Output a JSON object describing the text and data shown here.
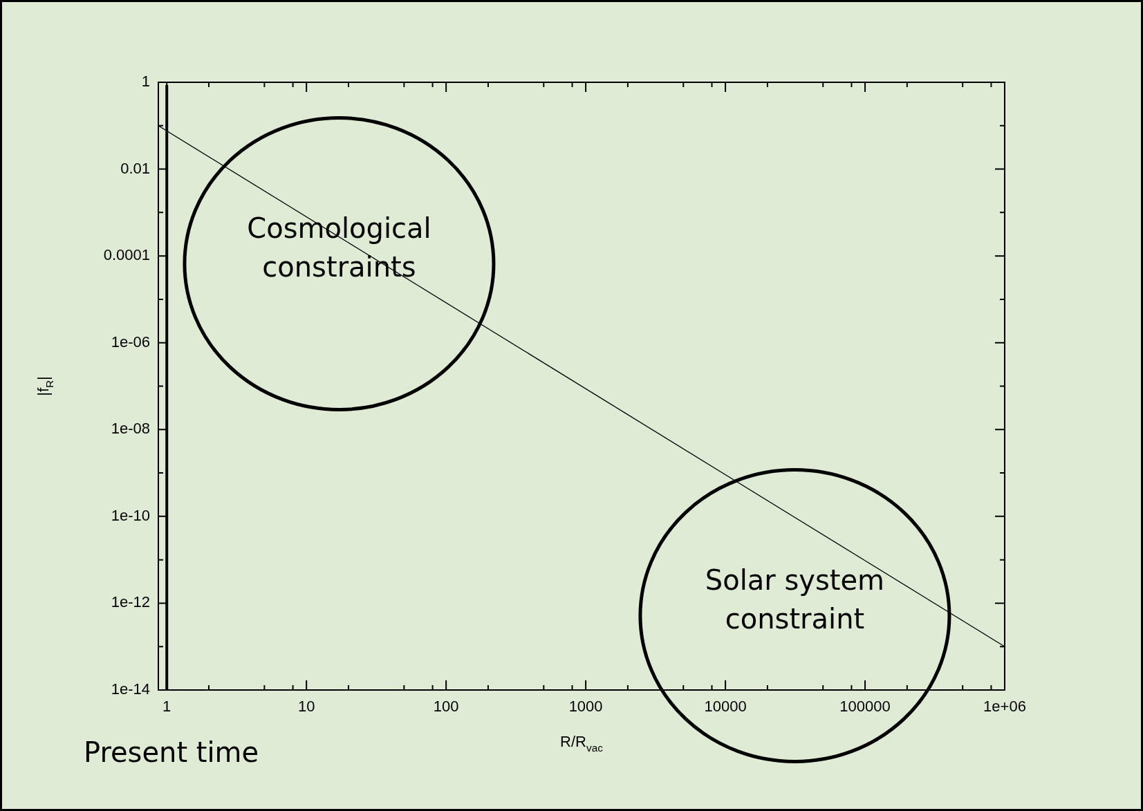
{
  "chart_data": {
    "type": "line",
    "xlabel": "R/R$_{vac}$",
    "ylabel": "|f$_{R}$|",
    "x": [
      0.87,
      1000000
    ],
    "series": [
      {
        "color": "#000000",
        "values": [
          0.1,
          1e-13
        ]
      }
    ],
    "log": "xy",
    "grid": false,
    "legend": false,
    "marker": "none",
    "line_style": "solid",
    "xlim": [
      0.87,
      1000000
    ],
    "xticks": [
      1,
      {
        "value": 2,
        "label": null
      },
      {
        "value": 5,
        "label": null
      },
      {
        "value": 8,
        "label": null
      },
      10,
      {
        "value": 20,
        "label": null
      },
      {
        "value": 50,
        "label": null
      },
      {
        "value": 80,
        "label": null
      },
      100,
      {
        "value": 200,
        "label": null
      },
      {
        "value": 500,
        "label": null
      },
      {
        "value": 800,
        "label": null
      },
      1000,
      {
        "value": 2000,
        "label": null
      },
      {
        "value": 5000,
        "label": null
      },
      {
        "value": 8000,
        "label": null
      },
      10000,
      {
        "value": 20000,
        "label": null
      },
      {
        "value": 50000,
        "label": null
      },
      {
        "value": 80000,
        "label": null
      },
      100000,
      {
        "value": 200000,
        "label": null
      },
      {
        "value": 500000,
        "label": null
      },
      {
        "value": 800000,
        "label": null
      },
      {
        "value": 1000000,
        "label": "1e+06"
      }
    ],
    "ylim": [
      1e-14,
      1
    ],
    "yticks": [
      1,
      {
        "value": 0.1,
        "label": null
      },
      0.01,
      {
        "value": 0.001,
        "label": null
      },
      0.0001,
      {
        "value": 1e-05,
        "label": null
      },
      {
        "value": 1e-06,
        "label": "1e-06"
      },
      {
        "value": 1e-07,
        "label": null
      },
      {
        "value": 1e-08,
        "label": "1e-08"
      },
      {
        "value": 1e-09,
        "label": null
      },
      {
        "value": 1e-10,
        "label": "1e-10"
      },
      {
        "value": 1e-11,
        "label": null
      },
      {
        "value": 1e-12,
        "label": "1e-12"
      },
      {
        "value": 1e-13,
        "label": null
      },
      {
        "value": 1e-14,
        "label": "1e-14"
      }
    ],
    "ref_lines": [
      {
        "axis": "x",
        "value": 1,
        "label": "Present time",
        "color": "#000000"
      }
    ],
    "annotations": [
      "Cosmological constraints",
      "Solar system constraint"
    ]
  }
}
